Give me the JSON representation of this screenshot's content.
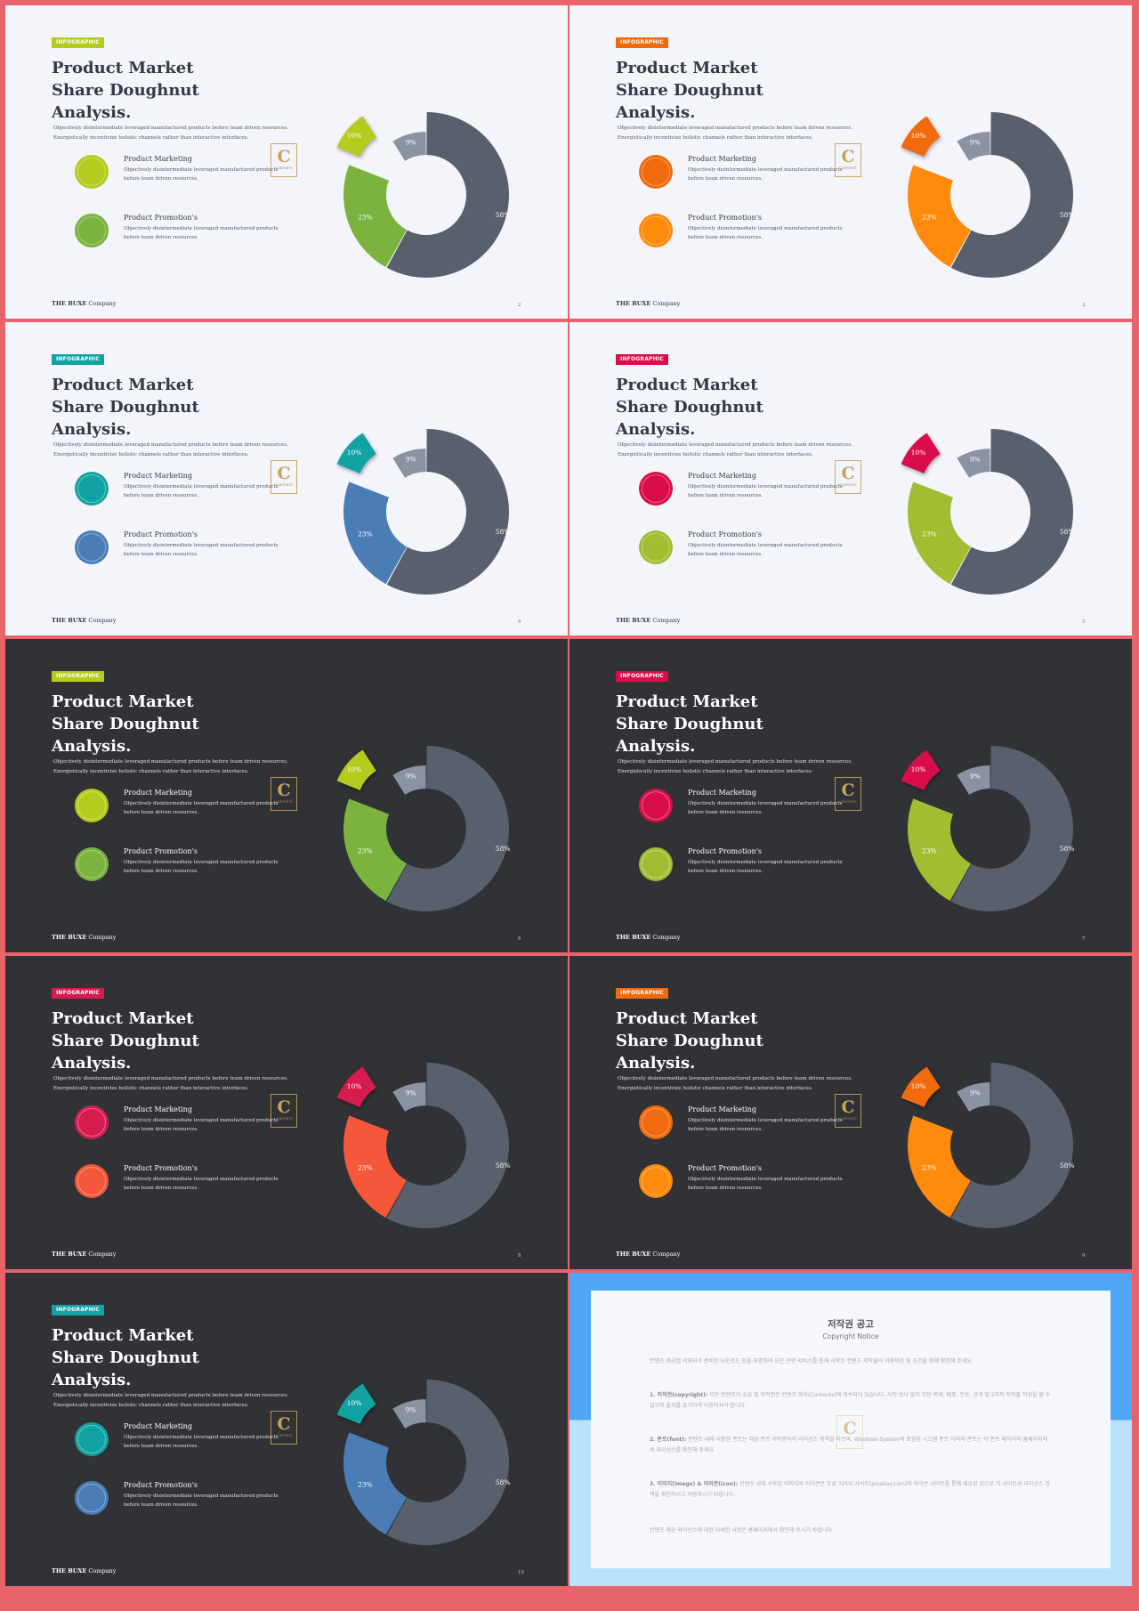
{
  "slides": [
    {
      "theme": "light",
      "page": "2",
      "badge": "INFOGRAPHIC",
      "title_line1": "Product Market",
      "title_line2": "Share Doughnut Analysis.",
      "desc_line1": "Objectively disintermediate leveraged manufactured products before team driven resources.",
      "desc_line2": "Energistically incentivize holistic channels rather than interactive interfaces.",
      "item1_title": "Product Marketing",
      "item1_text1": "Objectively disintermediate leveraged manufactured products",
      "item1_text2": "before team driven resources.",
      "item2_title": "Product Promotion's",
      "item2_text1": "Objectively disintermediate leveraged manufactured products",
      "item2_text2": "before team driven resources.",
      "footer_bold": "THE BUXE",
      "footer_rest": " Company",
      "logo_letter": "C",
      "logo_text": "CONTENTS",
      "colors": {
        "accent": "#b5cc1e",
        "secondary": "#7ab33d",
        "dark": "#59606d",
        "light": "#8a93a4"
      }
    },
    {
      "theme": "light",
      "page": "3",
      "badge": "INFOGRAPHIC",
      "title_line1": "Product Market",
      "title_line2": "Share Doughnut Analysis.",
      "desc_line1": "Objectively disintermediate leveraged manufactured products before team driven resources.",
      "desc_line2": "Energistically incentivize holistic channels rather than interactive interfaces.",
      "item1_title": "Product Marketing",
      "item1_text1": "Objectively disintermediate leveraged manufactured products",
      "item1_text2": "before team driven resources.",
      "item2_title": "Product Promotion's",
      "item2_text1": "Objectively disintermediate leveraged manufactured products",
      "item2_text2": "before team driven resources.",
      "footer_bold": "THE BUXE",
      "footer_rest": " Company",
      "logo_letter": "C",
      "logo_text": "CONTENTS",
      "colors": {
        "accent": "#f26a0e",
        "secondary": "#ff8a0c",
        "dark": "#59606d",
        "light": "#8a93a4"
      }
    },
    {
      "theme": "light",
      "page": "4",
      "badge": "INFOGRAPHIC",
      "title_line1": "Product Market",
      "title_line2": "Share Doughnut Analysis.",
      "desc_line1": "Objectively disintermediate leveraged manufactured products before team driven resources.",
      "desc_line2": "Energistically incentivize holistic channels rather than interactive interfaces.",
      "item1_title": "Product Marketing",
      "item1_text1": "Objectively disintermediate leveraged manufactured products",
      "item1_text2": "before team driven resources.",
      "item2_title": "Product Promotion's",
      "item2_text1": "Objectively disintermediate leveraged manufactured products",
      "item2_text2": "before team driven resources.",
      "footer_bold": "THE BUXE",
      "footer_rest": " Company",
      "logo_letter": "C",
      "logo_text": "CONTENTS",
      "colors": {
        "accent": "#11a3a3",
        "secondary": "#4a7db6",
        "dark": "#59606d",
        "light": "#8a93a4"
      }
    },
    {
      "theme": "light",
      "page": "5",
      "badge": "INFOGRAPHIC",
      "title_line1": "Product Market",
      "title_line2": "Share Doughnut Analysis.",
      "desc_line1": "Objectively disintermediate leveraged manufactured products before team driven resources.",
      "desc_line2": "Energistically incentivize holistic channels rather than interactive interfaces.",
      "item1_title": "Product Marketing",
      "item1_text1": "Objectively disintermediate leveraged manufactured products",
      "item1_text2": "before team driven resources.",
      "item2_title": "Product Promotion's",
      "item2_text1": "Objectively disintermediate leveraged manufactured products",
      "item2_text2": "before team driven resources.",
      "footer_bold": "THE BUXE",
      "footer_rest": " Company",
      "logo_letter": "C",
      "logo_text": "CONTENTS",
      "colors": {
        "accent": "#d90d4a",
        "secondary": "#a3bd33",
        "dark": "#59606d",
        "light": "#8a93a4"
      }
    },
    {
      "theme": "dark",
      "page": "6",
      "badge": "INFOGRAPHIC",
      "title_line1": "Product Market",
      "title_line2": "Share Doughnut Analysis.",
      "desc_line1": "Objectively disintermediate leveraged manufactured products before team driven resources.",
      "desc_line2": "Energistically incentivize holistic channels rather than interactive interfaces.",
      "item1_title": "Product Marketing",
      "item1_text1": "Objectively disintermediate leveraged manufactured products",
      "item1_text2": "before team driven resources.",
      "item2_title": "Product Promotion's",
      "item2_text1": "Objectively disintermediate leveraged manufactured products",
      "item2_text2": "before team driven resources.",
      "footer_bold": "THE BUXE",
      "footer_rest": " Company",
      "logo_letter": "C",
      "logo_text": "CONTENTS",
      "colors": {
        "accent": "#b5cc1e",
        "secondary": "#7ab33d",
        "dark": "#59606d",
        "light": "#8a93a4"
      }
    },
    {
      "theme": "dark",
      "page": "7",
      "badge": "INFOGRAPHIC",
      "title_line1": "Product Market",
      "title_line2": "Share Doughnut Analysis.",
      "desc_line1": "Objectively disintermediate leveraged manufactured products before team driven resources.",
      "desc_line2": "Energistically incentivize holistic channels rather than interactive interfaces.",
      "item1_title": "Product Marketing",
      "item1_text1": "Objectively disintermediate leveraged manufactured products",
      "item1_text2": "before team driven resources.",
      "item2_title": "Product Promotion's",
      "item2_text1": "Objectively disintermediate leveraged manufactured products",
      "item2_text2": "before team driven resources.",
      "footer_bold": "THE BUXE",
      "footer_rest": " Company",
      "logo_letter": "C",
      "logo_text": "CONTENTS",
      "colors": {
        "accent": "#d90d4a",
        "secondary": "#a3bd33",
        "dark": "#59606d",
        "light": "#8a93a4"
      }
    },
    {
      "theme": "dark",
      "page": "8",
      "badge": "INFOGRAPHIC",
      "title_line1": "Product Market",
      "title_line2": "Share Doughnut Analysis.",
      "desc_line1": "Objectively disintermediate leveraged manufactured products before team driven resources.",
      "desc_line2": "Energistically incentivize holistic channels rather than interactive interfaces.",
      "item1_title": "Product Marketing",
      "item1_text1": "Objectively disintermediate leveraged manufactured products",
      "item1_text2": "before team driven resources.",
      "item2_title": "Product Promotion's",
      "item2_text1": "Objectively disintermediate leveraged manufactured products",
      "item2_text2": "before team driven resources.",
      "footer_bold": "THE BUXE",
      "footer_rest": " Company",
      "logo_letter": "C",
      "logo_text": "CONTENTS",
      "colors": {
        "accent": "#d61c4e",
        "secondary": "#f5573a",
        "dark": "#59606d",
        "light": "#8a93a4"
      }
    },
    {
      "theme": "dark",
      "page": "9",
      "badge": "INFOGRAPHIC",
      "title_line1": "Product Market",
      "title_line2": "Share Doughnut Analysis.",
      "desc_line1": "Objectively disintermediate leveraged manufactured products before team driven resources.",
      "desc_line2": "Energistically incentivize holistic channels rather than interactive interfaces.",
      "item1_title": "Product Marketing",
      "item1_text1": "Objectively disintermediate leveraged manufactured products",
      "item1_text2": "before team driven resources.",
      "item2_title": "Product Promotion's",
      "item2_text1": "Objectively disintermediate leveraged manufactured products",
      "item2_text2": "before team driven resources.",
      "footer_bold": "THE BUXE",
      "footer_rest": " Company",
      "logo_letter": "C",
      "logo_text": "CONTENTS",
      "colors": {
        "accent": "#f26a0e",
        "secondary": "#ff8a0c",
        "dark": "#59606d",
        "light": "#8a93a4"
      }
    },
    {
      "theme": "dark",
      "page": "10",
      "badge": "INFOGRAPHIC",
      "title_line1": "Product Market",
      "title_line2": "Share Doughnut Analysis.",
      "desc_line1": "Objectively disintermediate leveraged manufactured products before team driven resources.",
      "desc_line2": "Energistically incentivize holistic channels rather than interactive interfaces.",
      "item1_title": "Product Marketing",
      "item1_text1": "Objectively disintermediate leveraged manufactured products",
      "item1_text2": "before team driven resources.",
      "item2_title": "Product Promotion's",
      "item2_text1": "Objectively disintermediate leveraged manufactured products",
      "item2_text2": "before team driven resources.",
      "footer_bold": "THE BUXE",
      "footer_rest": " Company",
      "logo_letter": "C",
      "logo_text": "CONTENTS",
      "colors": {
        "accent": "#11a3a3",
        "secondary": "#4a7db6",
        "dark": "#59606d",
        "light": "#8a93a4"
      }
    }
  ],
  "chart_data": {
    "type": "pie",
    "categories": [
      "58%",
      "23%",
      "10%",
      "9%"
    ],
    "values": [
      58,
      23,
      10,
      9
    ],
    "title": "",
    "note": "doughnut repeated on each of the 9 slides; 10% slice pulled out"
  },
  "copyright": {
    "title": "저작권 공고",
    "subtitle": "Copyright Notice",
    "intro": "컨텐츠 제공업 서포터가 준비한 다운로드 등을 포함하여 모든 관련 서비스를 통해 시작된 컨텐츠 저작물의 이용약관 및 조건을 함께 확인해 주세요.",
    "p1_label": "1. 저작권(copyright):",
    "p1_text": " 모든 컨텐츠의 소유 및 저작권은 컨텐츠 회사(Contents)에 귀속되어 있습니다. 사전 승낙 없이 무단 복제, 배포, 전송, 공개 및 2차적 저작물 작성을 할 수 없으며 출처를 표기하여 이용하셔야 합니다.",
    "p2_label": "2. 폰트(font):",
    "p2_text": " 컨텐츠 내에 사용된 폰트는 해당 폰트 저작권자의 라이선스 정책을 따르며, Windows System에 포함된 시스템 폰트 이외의 폰트는 각 폰트 제작사의 홈페이지에서 라이선스를 확인해 주세요.",
    "p3_label": "3. 이미지(image) & 아이콘(icon):",
    "p3_text": " 컨텐츠 내에 사용된 이미지와 아이콘은 무료 이미지 사이트(pixabay.com)와 아이콘 사이트를 통해 제공된 것으로 각 사이트의 라이선스 정책을 확인하시고 이용하시기 바랍니다.",
    "outro": "컨텐츠 제공 라이선스에 대한 자세한 사항은 홈페이지에서 확인해 주시기 바랍니다.",
    "logo_letter": "C"
  }
}
